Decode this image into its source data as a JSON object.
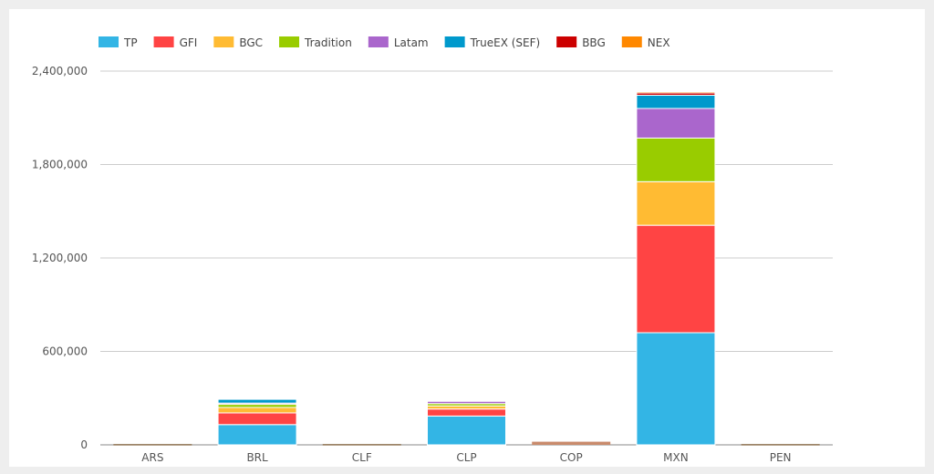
{
  "chart_data": {
    "type": "bar",
    "stacked": true,
    "categories": [
      "ARS",
      "BRL",
      "CLF",
      "CLP",
      "COP",
      "MXN",
      "PEN"
    ],
    "series": [
      {
        "name": "TP",
        "color": "#33b5e5",
        "values": [
          0,
          130000,
          0,
          185000,
          0,
          720000,
          0
        ]
      },
      {
        "name": "GFI",
        "color": "#ff4444",
        "values": [
          0,
          75000,
          0,
          45000,
          0,
          690000,
          0
        ]
      },
      {
        "name": "BGC",
        "color": "#ffbb33",
        "values": [
          0,
          35000,
          0,
          20000,
          0,
          280000,
          0
        ]
      },
      {
        "name": "Tradition",
        "color": "#99cc00",
        "values": [
          0,
          20000,
          0,
          15000,
          0,
          280000,
          0
        ]
      },
      {
        "name": "Latam",
        "color": "#aa66cc",
        "values": [
          0,
          8000,
          0,
          15000,
          0,
          190000,
          0
        ]
      },
      {
        "name": "TrueEX (SEF)",
        "color": "#0099cc",
        "values": [
          0,
          25000,
          0,
          5000,
          0,
          85000,
          0
        ]
      },
      {
        "name": "BBG",
        "color": "#cc0000",
        "values": [
          0,
          2000,
          0,
          2000,
          0,
          15000,
          0
        ]
      },
      {
        "name": "NEX",
        "color": "#ff8800",
        "values": [
          0,
          5000,
          0,
          3000,
          0,
          8000,
          0
        ]
      }
    ],
    "small_bars": [
      {
        "category": "ARS",
        "value": 5000,
        "color": "#8b6f4e"
      },
      {
        "category": "CLF",
        "value": 5000,
        "color": "#8b6f4e"
      },
      {
        "category": "COP",
        "value": 20000,
        "color": "#c98b6c"
      },
      {
        "category": "PEN",
        "value": 5000,
        "color": "#8b6f4e"
      }
    ],
    "y_ticks": [
      "0",
      "600,000",
      "1,200,000",
      "1,800,000",
      "2,400,000"
    ],
    "ylim": [
      0,
      2400000
    ],
    "grid": true,
    "legend": "top-left"
  }
}
